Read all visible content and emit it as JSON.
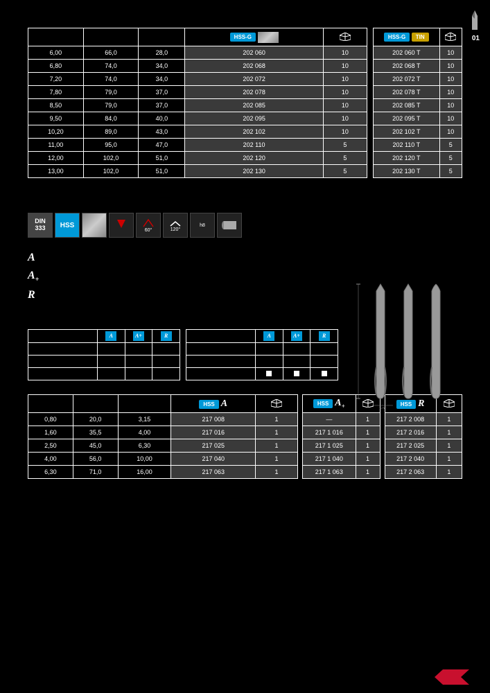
{
  "page_number": "01",
  "colors": {
    "accent": "#0099d8",
    "tin": "#c8a000",
    "grey_cell": "#3a3a3a"
  },
  "table1_main": {
    "headers": [
      "",
      "",
      "",
      "HSS-G",
      ""
    ],
    "rows": [
      [
        "6,00",
        "66,0",
        "28,0",
        "202 060",
        "10"
      ],
      [
        "6,80",
        "74,0",
        "34,0",
        "202 068",
        "10"
      ],
      [
        "7,20",
        "74,0",
        "34,0",
        "202 072",
        "10"
      ],
      [
        "7,80",
        "79,0",
        "37,0",
        "202 078",
        "10"
      ],
      [
        "8,50",
        "79,0",
        "37,0",
        "202 085",
        "10"
      ],
      [
        "9,50",
        "84,0",
        "40,0",
        "202 095",
        "10"
      ],
      [
        "10,20",
        "89,0",
        "43,0",
        "202 102",
        "10"
      ],
      [
        "11,00",
        "95,0",
        "47,0",
        "202 110",
        "5"
      ],
      [
        "12,00",
        "102,0",
        "51,0",
        "202 120",
        "5"
      ],
      [
        "13,00",
        "102,0",
        "51,0",
        "202 130",
        "5"
      ]
    ]
  },
  "table1_side": {
    "headers": [
      "HSS-G TIN",
      ""
    ],
    "rows": [
      [
        "202 060 T",
        "10"
      ],
      [
        "202 068 T",
        "10"
      ],
      [
        "202 072 T",
        "10"
      ],
      [
        "202 078 T",
        "10"
      ],
      [
        "202 085 T",
        "10"
      ],
      [
        "202 095 T",
        "10"
      ],
      [
        "202 102 T",
        "10"
      ],
      [
        "202 110 T",
        "5"
      ],
      [
        "202 120 T",
        "5"
      ],
      [
        "202 130 T",
        "5"
      ]
    ]
  },
  "icon_row": [
    "DIN 333",
    "HSS",
    "",
    "",
    "60°",
    "120°",
    "h8",
    ""
  ],
  "forms": [
    {
      "sym": "A",
      "text": ""
    },
    {
      "sym": "A+",
      "text": ""
    },
    {
      "sym": "R",
      "text": ""
    }
  ],
  "mat_table_left": {
    "cols": [
      "",
      "A",
      "A+",
      "R"
    ],
    "rows": [
      [
        "",
        "",
        "",
        ""
      ],
      [
        "",
        "",
        "",
        ""
      ],
      [
        "",
        "",
        "",
        ""
      ]
    ]
  },
  "mat_table_right": {
    "cols": [
      "",
      "A",
      "A+",
      "R"
    ],
    "rows": [
      [
        "",
        "",
        "",
        ""
      ],
      [
        "",
        "",
        "",
        ""
      ],
      [
        "",
        "■",
        "■",
        "■"
      ]
    ]
  },
  "table3_main": {
    "headers": [
      "",
      "",
      "",
      "HSS A",
      ""
    ],
    "rows": [
      [
        "0,80",
        "20,0",
        "3,15",
        "217 008",
        "1"
      ],
      [
        "1,60",
        "35,5",
        "4,00",
        "217 016",
        "1"
      ],
      [
        "2,50",
        "45,0",
        "6,30",
        "217 025",
        "1"
      ],
      [
        "4,00",
        "56,0",
        "10,00",
        "217 040",
        "1"
      ],
      [
        "6,30",
        "71,0",
        "16,00",
        "217 063",
        "1"
      ]
    ]
  },
  "table3_mid": {
    "headers": [
      "HSS A+",
      ""
    ],
    "rows": [
      [
        "—",
        "1"
      ],
      [
        "217 1 016",
        "1"
      ],
      [
        "217 1 025",
        "1"
      ],
      [
        "217 1 040",
        "1"
      ],
      [
        "217 1 063",
        "1"
      ]
    ]
  },
  "table3_right": {
    "headers": [
      "HSS R",
      ""
    ],
    "rows": [
      [
        "217 2 008",
        "1"
      ],
      [
        "217 2 016",
        "1"
      ],
      [
        "217 2 025",
        "1"
      ],
      [
        "217 2 040",
        "1"
      ],
      [
        "217 2 063",
        "1"
      ]
    ]
  }
}
